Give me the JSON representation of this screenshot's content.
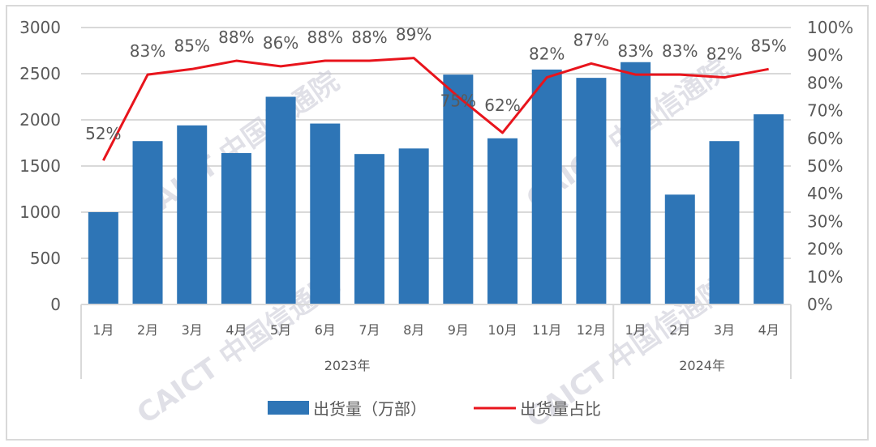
{
  "chart_data": {
    "type": "bar",
    "title": "",
    "categories": [
      "1月",
      "2月",
      "3月",
      "4月",
      "5月",
      "6月",
      "7月",
      "8月",
      "9月",
      "10月",
      "11月",
      "12月",
      "1月",
      "2月",
      "3月",
      "4月"
    ],
    "groups": [
      {
        "label": "2023年",
        "start": 0,
        "end": 11
      },
      {
        "label": "2024年",
        "start": 12,
        "end": 15
      }
    ],
    "series": [
      {
        "name": "出货量（万部）",
        "type": "bar",
        "axis": "left",
        "color": "#2E75B6",
        "values": [
          1000,
          1770,
          1940,
          1640,
          2250,
          1960,
          1630,
          1690,
          2490,
          1800,
          2545,
          2455,
          2625,
          1190,
          1770,
          2060
        ]
      },
      {
        "name": "出货量占比",
        "type": "line",
        "axis": "right",
        "color": "#E8141C",
        "values": [
          52,
          83,
          85,
          88,
          86,
          88,
          88,
          89,
          75,
          62,
          82,
          87,
          83,
          83,
          82,
          85
        ],
        "labels": [
          "52%",
          "83%",
          "85%",
          "88%",
          "86%",
          "88%",
          "88%",
          "89%",
          "75%",
          "62%",
          "82%",
          "87%",
          "83%",
          "83%",
          "82%",
          "85%"
        ]
      }
    ],
    "ylim": [
      0,
      3000
    ],
    "y_ticks": [
      "0",
      "500",
      "1000",
      "1500",
      "2000",
      "2500",
      "3000"
    ],
    "y2lim": [
      0,
      100
    ],
    "y2_ticks": [
      "0%",
      "10%",
      "20%",
      "30%",
      "40%",
      "50%",
      "60%",
      "70%",
      "80%",
      "90%",
      "100%"
    ],
    "xlabel": "",
    "ylabel": "",
    "y2label": "",
    "grid": true,
    "legend_position": "bottom",
    "watermark": "CAICT 中国信通院"
  },
  "legend": {
    "bar_label": "出货量（万部）",
    "line_label": "出货量占比"
  }
}
